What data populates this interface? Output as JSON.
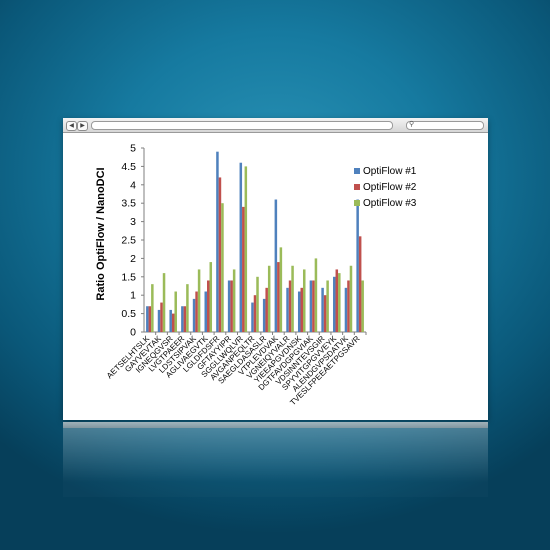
{
  "chart_data": {
    "type": "bar",
    "ylabel": "Ratio OptiFlow / NanoDCI",
    "xlabel": "",
    "ylim": [
      0,
      5
    ],
    "yticks": [
      "0",
      "0.5",
      "1",
      "1.5",
      "2",
      "2.5",
      "3",
      "3.5",
      "4",
      "4.5",
      "5"
    ],
    "grid": false,
    "legend_position": "top-right",
    "categories": [
      "AETSELHTSLK",
      "GAYVEVTAK",
      "IGNEQGVSR",
      "LVGTPAEER",
      "LDSTSIPVAK",
      "AGLIVAEGVTK",
      "LGLDFDSFR",
      "GFTAYYIPR",
      "SGGLLWQLVR",
      "AVGANPEQLTR",
      "SAEGLDASASLR",
      "VTPLEVDVAK",
      "VGNEIQYVALR",
      "YIEEAPGVDNSK",
      "DGTFAVDGPGVIAK",
      "VDSINNTEVSGIR",
      "SPYVITGPGVVEYK",
      "ALENDGVPSDATVK",
      "TVESLFPEEAETPGSAVR"
    ],
    "series": [
      {
        "name": "OptiFlow #1",
        "color": "#4f81bd",
        "values": [
          0.7,
          0.6,
          0.6,
          0.7,
          0.9,
          1.1,
          4.9,
          1.4,
          4.6,
          0.8,
          0.9,
          3.6,
          1.2,
          1.1,
          1.4,
          1.2,
          1.5,
          1.2,
          3.6
        ]
      },
      {
        "name": "OptiFlow #2",
        "color": "#c0504d",
        "values": [
          0.7,
          0.8,
          0.5,
          0.7,
          1.1,
          1.4,
          4.2,
          1.4,
          3.4,
          1.0,
          1.2,
          1.9,
          1.4,
          1.2,
          1.4,
          1.0,
          1.7,
          1.4,
          2.6
        ]
      },
      {
        "name": "OptiFlow #3",
        "color": "#9bbb59",
        "values": [
          1.3,
          1.6,
          1.1,
          1.3,
          1.7,
          1.9,
          3.5,
          1.7,
          4.5,
          1.5,
          1.8,
          2.3,
          1.8,
          1.7,
          2.0,
          1.4,
          1.6,
          1.8,
          1.4
        ]
      }
    ]
  },
  "browser": {
    "back_icon": "chevron-left",
    "forward_icon": "chevron-right",
    "search_icon": "magnifier"
  }
}
